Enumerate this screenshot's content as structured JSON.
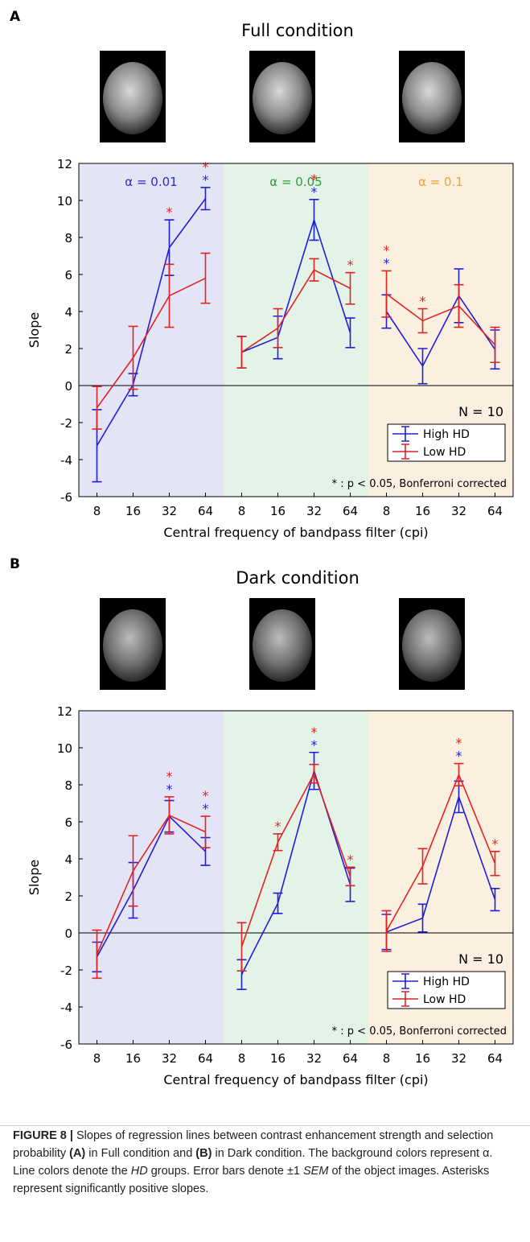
{
  "chart_data": [
    {
      "type": "line",
      "panel_label": "A",
      "title": "Full condition",
      "categories": [
        "8",
        "16",
        "32",
        "64",
        "8",
        "16",
        "32",
        "64",
        "8",
        "16",
        "32",
        "64"
      ],
      "regions": [
        {
          "label": "α = 0.01",
          "color": "#e4e4f7",
          "label_color": "#2a2acc"
        },
        {
          "label": "α = 0.05",
          "color": "#e3f3e7",
          "label_color": "#2f9a3a"
        },
        {
          "label": "α = 0.1",
          "color": "#fbf0e0",
          "label_color": "#f0a030"
        }
      ],
      "series": [
        {
          "name": "High HD",
          "color": "#1f1fd6",
          "values": [
            -3.25,
            0.05,
            7.45,
            10.1,
            1.8,
            2.6,
            8.95,
            2.85,
            4.0,
            1.05,
            4.85,
            1.95
          ],
          "errors": [
            1.95,
            0.6,
            1.5,
            0.6,
            0.85,
            1.15,
            1.1,
            0.8,
            0.9,
            0.95,
            1.45,
            1.05
          ],
          "significant": [
            false,
            false,
            false,
            true,
            false,
            false,
            true,
            false,
            true,
            false,
            false,
            false
          ]
        },
        {
          "name": "Low HD",
          "color": "#e02424",
          "values": [
            -1.2,
            1.5,
            4.85,
            5.8,
            1.8,
            3.1,
            6.25,
            5.25,
            4.95,
            3.5,
            4.3,
            2.2
          ],
          "errors": [
            1.15,
            1.7,
            1.7,
            1.35,
            0.85,
            1.05,
            0.6,
            0.85,
            1.25,
            0.65,
            1.15,
            0.95
          ],
          "significant": [
            false,
            false,
            true,
            true,
            false,
            false,
            true,
            true,
            true,
            true,
            false,
            false
          ]
        }
      ],
      "ylim": [
        -6,
        12
      ],
      "yticks": [
        -6,
        -4,
        -2,
        0,
        2,
        4,
        6,
        8,
        10,
        12
      ],
      "xlabel": "Central frequency of bandpass filter (cpi)",
      "ylabel": "Slope",
      "annotation": "N = 10",
      "significance_marker": "*",
      "footnote": "* : p < 0.05, Bonferroni corrected",
      "legend": "lower right"
    },
    {
      "type": "line",
      "panel_label": "B",
      "title": "Dark condition",
      "categories": [
        "8",
        "16",
        "32",
        "64",
        "8",
        "16",
        "32",
        "64",
        "8",
        "16",
        "32",
        "64"
      ],
      "regions": [
        {
          "label": null,
          "color": "#e4e4f7",
          "label_color": "#2a2acc"
        },
        {
          "label": null,
          "color": "#e3f3e7",
          "label_color": "#2f9a3a"
        },
        {
          "label": null,
          "color": "#fbf0e0",
          "label_color": "#f0a030"
        }
      ],
      "series": [
        {
          "name": "High HD",
          "color": "#1f1fd6",
          "values": [
            -1.3,
            2.3,
            6.3,
            4.4,
            -2.25,
            1.6,
            8.75,
            2.6,
            0.05,
            0.8,
            7.35,
            1.8
          ],
          "errors": [
            0.8,
            1.5,
            0.85,
            0.75,
            0.8,
            0.55,
            1.0,
            0.9,
            0.95,
            0.75,
            0.85,
            0.6
          ],
          "significant": [
            false,
            false,
            true,
            true,
            false,
            false,
            true,
            false,
            false,
            false,
            true,
            false
          ]
        },
        {
          "name": "Low HD",
          "color": "#e02424",
          "values": [
            -1.15,
            3.35,
            6.35,
            5.45,
            -0.75,
            4.9,
            8.6,
            3.05,
            0.1,
            3.6,
            8.55,
            3.75
          ],
          "errors": [
            1.3,
            1.9,
            1.0,
            0.85,
            1.3,
            0.45,
            0.5,
            0.5,
            1.1,
            0.95,
            0.6,
            0.65
          ],
          "significant": [
            false,
            false,
            true,
            true,
            false,
            true,
            true,
            true,
            false,
            false,
            true,
            true
          ]
        }
      ],
      "ylim": [
        -6,
        12
      ],
      "yticks": [
        -6,
        -4,
        -2,
        0,
        2,
        4,
        6,
        8,
        10,
        12
      ],
      "xlabel": "Central frequency of bandpass filter (cpi)",
      "ylabel": "Slope",
      "annotation": "N = 10",
      "significance_marker": "*",
      "footnote": "* : p < 0.05, Bonferroni corrected",
      "legend": "lower right"
    }
  ],
  "caption": [
    "FIGURE 8 |",
    " Slopes of regression lines between contrast enhancement strength and selection probability ",
    "(A)",
    " in Full condition and ",
    "(B)",
    " in Dark condition. The background colors represent α. Line colors denote the ",
    "HD",
    " groups. Error bars denote ±1 ",
    "SEM",
    " of the object images. Asterisks represent significantly positive slopes."
  ]
}
